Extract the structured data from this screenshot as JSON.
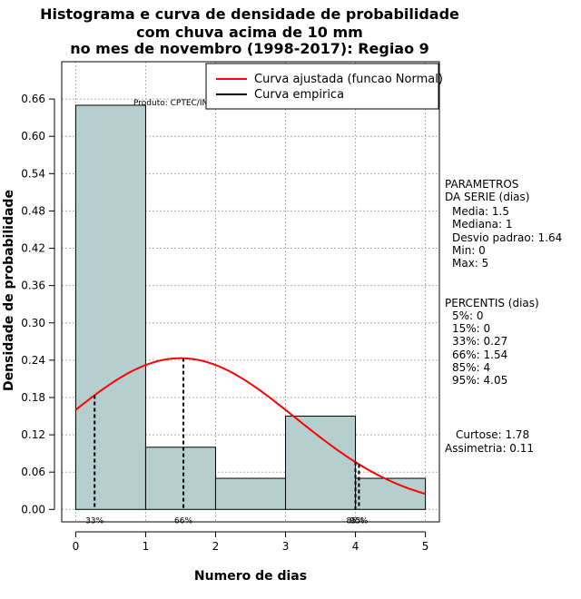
{
  "chart_data": {
    "type": "histogram",
    "title_lines": [
      "Histograma e curva de densidade de probabilidade",
      "com chuva acima de 10 mm",
      "no mes de novembro (1998-2017): Regiao 9"
    ],
    "xlabel": "Numero de dias",
    "ylabel": "Densidade de probabilidade",
    "xlim": [
      -0.2,
      5.2
    ],
    "ylim": [
      -0.02,
      0.72
    ],
    "x_ticks": [
      0,
      1,
      2,
      3,
      4,
      5
    ],
    "y_ticks": [
      0.0,
      0.06,
      0.12,
      0.18,
      0.24,
      0.3,
      0.36,
      0.42,
      0.48,
      0.54,
      0.6,
      0.66
    ],
    "y_tick_labels": [
      "0.00",
      "0.06",
      "0.12",
      "0.18",
      "0.24",
      "0.30",
      "0.36",
      "0.42",
      "0.48",
      "0.54",
      "0.60",
      "0.66"
    ],
    "grid": true,
    "bins": [
      {
        "x0": 0,
        "x1": 1,
        "density": 0.65
      },
      {
        "x0": 1,
        "x1": 2,
        "density": 0.1
      },
      {
        "x0": 2,
        "x1": 3,
        "density": 0.05
      },
      {
        "x0": 3,
        "x1": 4,
        "density": 0.15
      },
      {
        "x0": 4,
        "x1": 5,
        "density": 0.05
      }
    ],
    "normal_fit": {
      "name": "Curva ajustada (funcao Normal)",
      "mean": 1.5,
      "sd": 1.64,
      "x_range": [
        0,
        5
      ]
    },
    "empirical_name": "Curva empirica",
    "percentile_markers": [
      {
        "x": 0.27,
        "label": "33%"
      },
      {
        "x": 1.54,
        "label": "66%"
      },
      {
        "x": 4.0,
        "label": "85%"
      },
      {
        "x": 4.05,
        "label": "95%"
      }
    ],
    "product_label": "Produto: CPTEC/INPE",
    "legend": {
      "placement": "top-right",
      "entries": [
        {
          "label": "Curva ajustada (funcao Normal)",
          "color": "#ff0000"
        },
        {
          "label": "Curva empirica",
          "color": "#000000"
        }
      ]
    },
    "colors": {
      "bar_fill": "#b5cece",
      "normal_curve": "#ff0000",
      "grid": "#b0b0b0"
    }
  },
  "side_panel": {
    "parametros": {
      "heading_1": "PARAMETROS",
      "heading_2": "DA SERIE (dias)",
      "media": "Media: 1.5",
      "mediana": "Mediana: 1",
      "desvio": "Desvio padrao: 1.64",
      "min": "Min: 0",
      "max": "Max: 5"
    },
    "percentis": {
      "heading": "PERCENTIS (dias)",
      "p5": "5%: 0",
      "p15": "15%: 0",
      "p33": "33%: 0.27",
      "p66": "66%: 1.54",
      "p85": "85%: 4",
      "p95": "95%: 4.05"
    },
    "curtose": "Curtose: 1.78",
    "assimetria": "Assimetria: 0.11"
  }
}
